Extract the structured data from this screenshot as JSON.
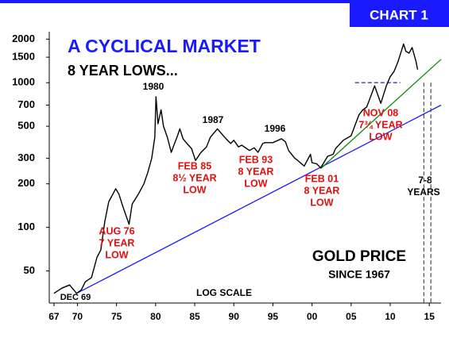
{
  "chart_data": {
    "type": "line",
    "badge": "CHART 1",
    "title": "A CYCLICAL MARKET",
    "subtitle": "8 YEAR LOWS...",
    "series": [
      {
        "name": "GOLD PRICE",
        "color": "#000000",
        "x": [
          1967,
          1968,
          1969,
          1969.9,
          1970.5,
          1971,
          1971.8,
          1972.5,
          1973,
          1973.5,
          1974,
          1974.9,
          1975.3,
          1975.8,
          1976.6,
          1977,
          1977.8,
          1978.5,
          1979,
          1979.5,
          1979.9,
          1980.05,
          1980.3,
          1980.7,
          1981,
          1981.5,
          1982,
          1982.5,
          1982.8,
          1983.1,
          1983.5,
          1984,
          1984.6,
          1985.1,
          1985.8,
          1986.5,
          1987,
          1987.9,
          1988.5,
          1989,
          1989.6,
          1990,
          1990.6,
          1991,
          1992,
          1992.6,
          1993.1,
          1993.7,
          1994,
          1995,
          1996.1,
          1996.6,
          1997,
          1997.8,
          1998,
          1999,
          1999.8,
          2000,
          2000.6,
          2001.1,
          2002,
          2002.7,
          2003,
          2004,
          2005,
          2006,
          2006.5,
          2007,
          2008,
          2008.8,
          2009.5,
          2010,
          2010.5,
          2011,
          2011.7,
          2012,
          2012.4,
          2012.8,
          2013.3,
          2013.5
        ],
        "values": [
          35,
          38,
          40,
          35,
          37,
          42,
          45,
          62,
          70,
          110,
          150,
          185,
          170,
          140,
          105,
          145,
          170,
          200,
          240,
          300,
          420,
          800,
          520,
          650,
          500,
          420,
          330,
          390,
          430,
          480,
          410,
          380,
          350,
          290,
          330,
          360,
          420,
          480,
          440,
          410,
          380,
          400,
          360,
          370,
          340,
          355,
          330,
          380,
          385,
          385,
          410,
          390,
          340,
          300,
          295,
          265,
          320,
          280,
          275,
          258,
          310,
          320,
          350,
          400,
          430,
          600,
          650,
          680,
          950,
          720,
          950,
          1100,
          1200,
          1400,
          1850,
          1650,
          1600,
          1750,
          1400,
          1230
        ]
      }
    ],
    "trendlines": [
      {
        "color": "#1a1aff",
        "x": [
          1969.9,
          2016.5
        ],
        "values": [
          35,
          700
        ]
      },
      {
        "color": "#0a8a0a",
        "x": [
          2001.1,
          2016.5
        ],
        "values": [
          255,
          1450
        ]
      }
    ],
    "dashed": [
      {
        "color": "#3333cc",
        "x": [
          2005.5,
          2011.3
        ],
        "values": [
          1000,
          1000
        ]
      },
      {
        "color": "#555555",
        "x": [
          2014.3,
          2014.3
        ],
        "values": [
          1000,
          30
        ]
      },
      {
        "color": "#555555",
        "x": [
          2015.2,
          2015.2
        ],
        "values": [
          1000,
          30
        ]
      }
    ],
    "peaks": [
      "1980",
      "1987",
      "1996"
    ],
    "lows": [
      [
        "AUG 76",
        "7 YEAR",
        "LOW"
      ],
      [
        "FEB 85",
        "8½ YEAR",
        "LOW"
      ],
      [
        "FEB 93",
        "8 YEAR",
        "LOW"
      ],
      [
        "FEB 01",
        "8 YEAR",
        "LOW"
      ],
      [
        "NOV 08",
        "7¾ YEAR",
        "LOW"
      ]
    ],
    "start_label": "DEC 69",
    "scale_note": "LOG SCALE",
    "cycle_note": [
      "7-8",
      "YEARS"
    ],
    "legend_title": "GOLD PRICE",
    "legend_subtitle": "SINCE 1967",
    "log_scale": true,
    "xlim": [
      1966.4,
      2016.5
    ],
    "xticks": [
      {
        "value": 1967,
        "label": "67"
      },
      {
        "value": 1970,
        "label": "70"
      },
      {
        "value": 1975,
        "label": "75"
      },
      {
        "value": 1980,
        "label": "80"
      },
      {
        "value": 1985,
        "label": "85"
      },
      {
        "value": 1990,
        "label": "90"
      },
      {
        "value": 1995,
        "label": "95"
      },
      {
        "value": 2000,
        "label": "00"
      },
      {
        "value": 2005,
        "label": "05"
      },
      {
        "value": 2010,
        "label": "10"
      },
      {
        "value": 2015,
        "label": "15"
      }
    ],
    "ylim": [
      30,
      2250
    ],
    "yticks": [
      50,
      100,
      200,
      300,
      500,
      700,
      1000,
      1500,
      2000
    ]
  }
}
